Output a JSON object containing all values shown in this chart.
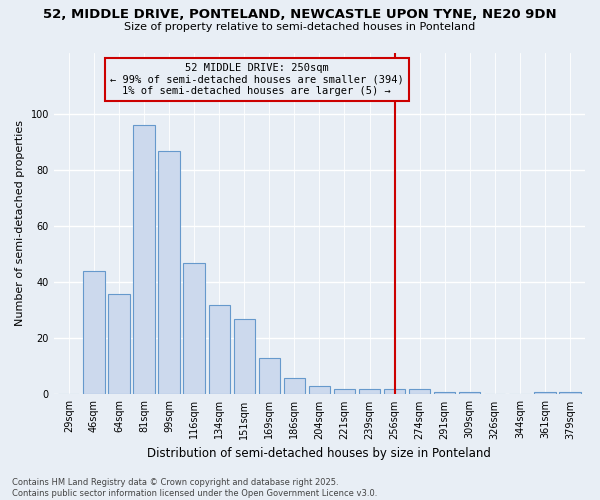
{
  "title1": "52, MIDDLE DRIVE, PONTELAND, NEWCASTLE UPON TYNE, NE20 9DN",
  "title2": "Size of property relative to semi-detached houses in Ponteland",
  "xlabel": "Distribution of semi-detached houses by size in Ponteland",
  "ylabel": "Number of semi-detached properties",
  "categories": [
    "29sqm",
    "46sqm",
    "64sqm",
    "81sqm",
    "99sqm",
    "116sqm",
    "134sqm",
    "151sqm",
    "169sqm",
    "186sqm",
    "204sqm",
    "221sqm",
    "239sqm",
    "256sqm",
    "274sqm",
    "291sqm",
    "309sqm",
    "326sqm",
    "344sqm",
    "361sqm",
    "379sqm"
  ],
  "values": [
    0,
    44,
    36,
    96,
    87,
    47,
    32,
    27,
    13,
    6,
    3,
    2,
    2,
    2,
    2,
    1,
    1,
    0,
    0,
    1,
    1
  ],
  "bar_facecolor": "#ccd9ed",
  "bar_edgecolor": "#6699cc",
  "highlight_line_index": 13,
  "highlight_color": "#cc0000",
  "annotation_title": "52 MIDDLE DRIVE: 250sqm",
  "annotation_line1": "← 99% of semi-detached houses are smaller (394)",
  "annotation_line2": "1% of semi-detached houses are larger (5) →",
  "ylim": [
    0,
    122
  ],
  "yticks": [
    0,
    20,
    40,
    60,
    80,
    100
  ],
  "footer1": "Contains HM Land Registry data © Crown copyright and database right 2025.",
  "footer2": "Contains public sector information licensed under the Open Government Licence v3.0.",
  "bg_color": "#e8eef5"
}
